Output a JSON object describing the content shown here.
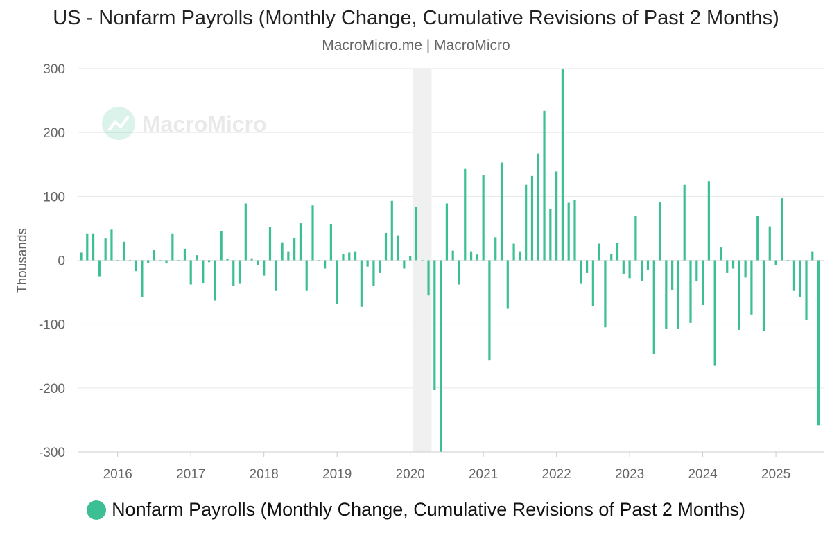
{
  "header": {
    "title": "US - Nonfarm Payrolls (Monthly Change, Cumulative Revisions of Past 2 Months)",
    "subtitle": "MacroMicro.me | MacroMicro"
  },
  "watermark": {
    "text": "MacroMicro"
  },
  "legend": {
    "label": "Nonfarm Payrolls (Monthly Change, Cumulative Revisions of Past 2 Months)",
    "color": "#3dbf96"
  },
  "chart_data": {
    "type": "bar",
    "title": "US - Nonfarm Payrolls (Monthly Change, Cumulative Revisions of Past 2 Months)",
    "subtitle": "MacroMicro.me | MacroMicro",
    "ylabel": "Thousands",
    "xlabel": "",
    "ylim": [
      -300,
      300
    ],
    "yticks": [
      300,
      200,
      100,
      0,
      -100,
      -200,
      -300
    ],
    "ytick_labels": [
      "300",
      "200",
      "100",
      "0",
      "-100",
      "-200",
      "-300"
    ],
    "xticks": [
      "2016",
      "2017",
      "2018",
      "2019",
      "2020",
      "2021",
      "2022",
      "2023",
      "2024",
      "2025"
    ],
    "grid": true,
    "legend_position": "bottom-center",
    "color": "#3dbf96",
    "recession_shading": {
      "start": "2020-02",
      "end": "2020-04"
    },
    "start_month": "2015-07",
    "series": [
      {
        "name": "Nonfarm Payrolls (Monthly Change, Cumulative Revisions of Past 2 Months)",
        "values": [
          12,
          42,
          42,
          -25,
          34,
          48,
          0,
          29,
          0,
          -17,
          -58,
          -4,
          16,
          0,
          -5,
          42,
          0,
          18,
          -38,
          8,
          -36,
          -3,
          -63,
          46,
          2,
          -40,
          -37,
          89,
          3,
          -7,
          -24,
          52,
          -48,
          28,
          14,
          35,
          58,
          -48,
          86,
          0,
          -13,
          57,
          -68,
          10,
          12,
          14,
          -73,
          -10,
          -40,
          -20,
          43,
          93,
          39,
          -13,
          6,
          83,
          0,
          -55,
          -203,
          -300,
          89,
          15,
          -38,
          143,
          14,
          9,
          134,
          -157,
          36,
          153,
          -76,
          26,
          14,
          118,
          132,
          167,
          234,
          80,
          139,
          300,
          90,
          94,
          -37,
          -20,
          -72,
          26,
          -105,
          10,
          27,
          -22,
          -28,
          70,
          -32,
          -15,
          -147,
          91,
          -107,
          -47,
          -107,
          118,
          -98,
          -33,
          -70,
          124,
          -165,
          20,
          -20,
          -13,
          -109,
          -27,
          -85,
          70,
          -111,
          53,
          -7,
          98,
          0,
          -48,
          -58,
          -93,
          14,
          -258
        ]
      }
    ]
  }
}
